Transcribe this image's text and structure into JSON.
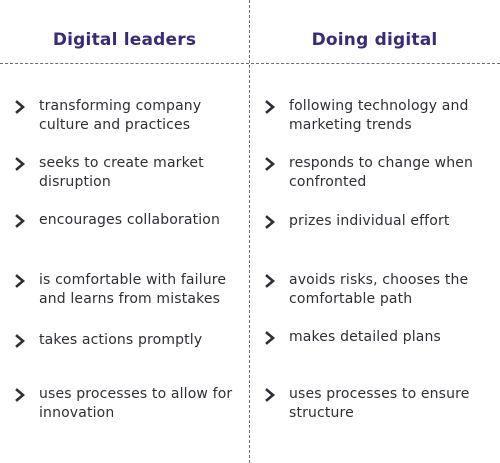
{
  "columns": [
    {
      "heading": "Digital leaders",
      "items": [
        "transforming company culture and practices",
        "seeks to create market disruption",
        "encourages collaboration",
        "is comfortable with failure and learns from mistakes",
        "takes actions promptly",
        "uses processes to allow for innovation"
      ]
    },
    {
      "heading": "Doing digital",
      "items": [
        "following technology and marketing trends",
        "responds to change when confronted",
        "prizes individual effort",
        "avoids risks, chooses the comfortable path",
        "makes detailed plans",
        "uses processes to ensure structure"
      ]
    }
  ],
  "colors": {
    "heading": "#3b2a78",
    "text": "#2d2f35",
    "divider": "#6b6f78"
  },
  "icons": {
    "bullet": "chevron-right-icon"
  }
}
